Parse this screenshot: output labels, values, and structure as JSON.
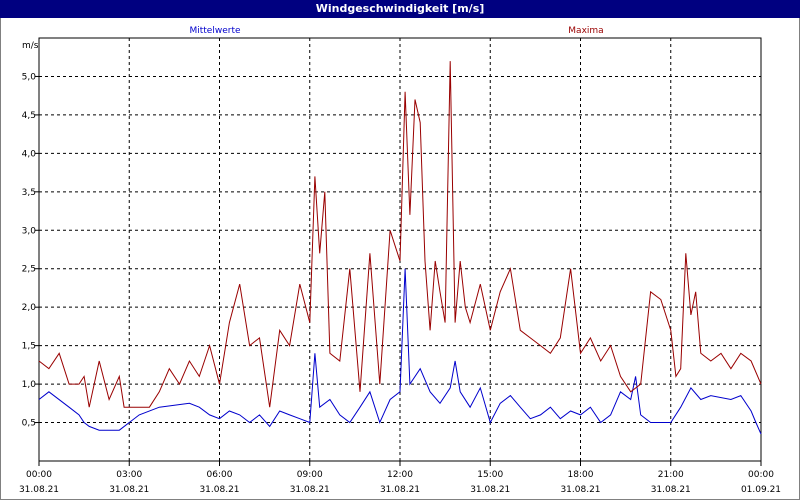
{
  "window": {
    "title": "Windgeschwindigkeit [m/s]"
  },
  "chart_data": {
    "type": "line",
    "title": "Windgeschwindigkeit [m/s]",
    "ylabel": "m/s",
    "xlabel": "",
    "ylim": [
      0.0,
      5.5
    ],
    "yticks": [
      "0,5",
      "1,0",
      "1,5",
      "2,0",
      "2,5",
      "3,0",
      "3,5",
      "4,0",
      "4,5",
      "5,0"
    ],
    "xlim_hours": [
      0,
      24
    ],
    "xticks": [
      {
        "time": "00:00",
        "date": "31.08.21"
      },
      {
        "time": "03:00",
        "date": "31.08.21"
      },
      {
        "time": "06:00",
        "date": "31.08.21"
      },
      {
        "time": "09:00",
        "date": "31.08.21"
      },
      {
        "time": "12:00",
        "date": "31.08.21"
      },
      {
        "time": "15:00",
        "date": "31.08.21"
      },
      {
        "time": "18:00",
        "date": "31.08.21"
      },
      {
        "time": "21:00",
        "date": "31.08.21"
      },
      {
        "time": "00:00",
        "date": "01.09.21"
      }
    ],
    "grid": true,
    "series": [
      {
        "name": "Mittelwerte",
        "color": "#0000cc",
        "x": [
          0.0,
          0.33,
          1.0,
          1.33,
          1.5,
          1.67,
          2.0,
          2.67,
          3.0,
          3.33,
          4.0,
          5.0,
          5.33,
          5.67,
          6.0,
          6.33,
          6.67,
          7.0,
          7.33,
          7.67,
          8.0,
          8.33,
          8.67,
          9.0,
          9.17,
          9.33,
          9.67,
          10.0,
          10.33,
          10.67,
          11.0,
          11.33,
          11.67,
          12.0,
          12.17,
          12.33,
          12.67,
          13.0,
          13.33,
          13.67,
          13.83,
          14.0,
          14.33,
          14.67,
          15.0,
          15.33,
          15.67,
          16.0,
          16.33,
          16.67,
          17.0,
          17.33,
          17.67,
          18.0,
          18.33,
          18.67,
          19.0,
          19.33,
          19.67,
          19.83,
          20.0,
          20.33,
          21.0,
          21.33,
          21.67,
          22.0,
          22.33,
          23.0,
          23.33,
          23.67,
          23.83,
          24.0
        ],
        "y": [
          0.8,
          0.9,
          0.7,
          0.6,
          0.5,
          0.45,
          0.4,
          0.4,
          0.5,
          0.6,
          0.7,
          0.75,
          0.7,
          0.6,
          0.55,
          0.65,
          0.6,
          0.5,
          0.6,
          0.45,
          0.65,
          0.6,
          0.55,
          0.5,
          1.4,
          0.7,
          0.8,
          0.6,
          0.5,
          0.7,
          0.9,
          0.5,
          0.8,
          0.9,
          2.5,
          1.0,
          1.2,
          0.9,
          0.75,
          0.95,
          1.3,
          0.9,
          0.7,
          0.95,
          0.5,
          0.75,
          0.85,
          0.7,
          0.55,
          0.6,
          0.7,
          0.55,
          0.65,
          0.6,
          0.7,
          0.5,
          0.6,
          0.9,
          0.8,
          1.1,
          0.6,
          0.5,
          0.5,
          0.7,
          0.95,
          0.8,
          0.85,
          0.8,
          0.85,
          0.65,
          0.5,
          0.35
        ]
      },
      {
        "name": "Maxima",
        "color": "#990000",
        "x": [
          0.0,
          0.33,
          0.67,
          1.0,
          1.33,
          1.5,
          1.67,
          2.0,
          2.33,
          2.67,
          2.83,
          3.0,
          3.33,
          3.67,
          4.0,
          4.33,
          4.67,
          5.0,
          5.33,
          5.67,
          6.0,
          6.33,
          6.67,
          7.0,
          7.33,
          7.67,
          8.0,
          8.33,
          8.67,
          9.0,
          9.17,
          9.33,
          9.5,
          9.67,
          10.0,
          10.33,
          10.67,
          11.0,
          11.33,
          11.67,
          12.0,
          12.17,
          12.33,
          12.5,
          12.67,
          12.83,
          13.0,
          13.17,
          13.33,
          13.5,
          13.67,
          13.83,
          14.0,
          14.17,
          14.33,
          14.67,
          15.0,
          15.33,
          15.67,
          16.0,
          16.33,
          16.67,
          17.0,
          17.33,
          17.67,
          18.0,
          18.33,
          18.67,
          19.0,
          19.33,
          19.67,
          20.0,
          20.33,
          20.67,
          21.0,
          21.17,
          21.33,
          21.5,
          21.67,
          21.83,
          22.0,
          22.33,
          22.67,
          23.0,
          23.33,
          23.67,
          24.0
        ],
        "y": [
          1.3,
          1.2,
          1.4,
          1.0,
          1.0,
          1.1,
          0.7,
          1.3,
          0.8,
          1.1,
          0.7,
          0.7,
          0.7,
          0.7,
          0.9,
          1.2,
          1.0,
          1.3,
          1.1,
          1.5,
          1.0,
          1.8,
          2.3,
          1.5,
          1.6,
          0.7,
          1.7,
          1.5,
          2.3,
          1.8,
          3.7,
          2.7,
          3.5,
          1.4,
          1.3,
          2.5,
          0.9,
          2.7,
          1.0,
          3.0,
          2.6,
          4.8,
          3.2,
          4.7,
          4.4,
          2.6,
          1.7,
          2.6,
          2.2,
          1.8,
          5.2,
          1.8,
          2.6,
          2.0,
          1.8,
          2.3,
          1.7,
          2.2,
          2.5,
          1.7,
          1.6,
          1.5,
          1.4,
          1.6,
          2.5,
          1.4,
          1.6,
          1.3,
          1.5,
          1.1,
          0.9,
          1.0,
          2.2,
          2.1,
          1.7,
          1.1,
          1.2,
          2.7,
          1.9,
          2.2,
          1.4,
          1.3,
          1.4,
          1.2,
          1.4,
          1.3,
          1.0
        ]
      }
    ]
  }
}
